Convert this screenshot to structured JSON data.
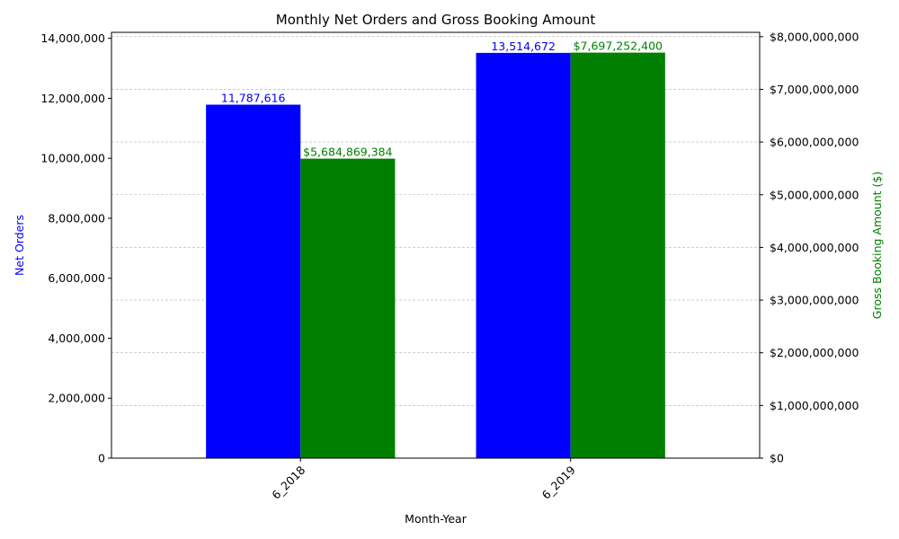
{
  "chart_data": {
    "type": "bar",
    "title": "Monthly Net Orders and Gross Booking Amount",
    "xlabel": "Month-Year",
    "categories": [
      "6_2018",
      "6_2019"
    ],
    "series": [
      {
        "axis": "left",
        "color": "#0000ff",
        "values": [
          11787616,
          13514672
        ],
        "value_labels": [
          "11,787,616",
          "13,514,672"
        ]
      },
      {
        "axis": "right",
        "color": "#008000",
        "values": [
          5684869384,
          7697252400
        ],
        "value_labels": [
          "$5,684,869,384",
          "$7,697,252,400"
        ]
      }
    ],
    "left_axis": {
      "label": "Net Orders",
      "label_color": "#0000ff",
      "ylim": [
        0,
        14200000
      ],
      "ticks": [
        0,
        2000000,
        4000000,
        6000000,
        8000000,
        10000000,
        12000000,
        14000000
      ],
      "tick_labels": [
        "0",
        "2,000,000",
        "4,000,000",
        "6,000,000",
        "8,000,000",
        "10,000,000",
        "12,000,000",
        "14,000,000"
      ]
    },
    "right_axis": {
      "label": "Gross Booking Amount ($)",
      "label_color": "#008000",
      "ylim": [
        0,
        8082115020
      ],
      "ticks": [
        0,
        1000000000,
        2000000000,
        3000000000,
        4000000000,
        5000000000,
        6000000000,
        7000000000,
        8000000000
      ],
      "tick_labels": [
        "$0",
        "$1,000,000,000",
        "$2,000,000,000",
        "$3,000,000,000",
        "$4,000,000,000",
        "$5,000,000,000",
        "$6,000,000,000",
        "$7,000,000,000",
        "$8,000,000,000"
      ]
    },
    "grid": "horizontal dashed, right axis",
    "x_tick_rotation_deg": 45
  }
}
